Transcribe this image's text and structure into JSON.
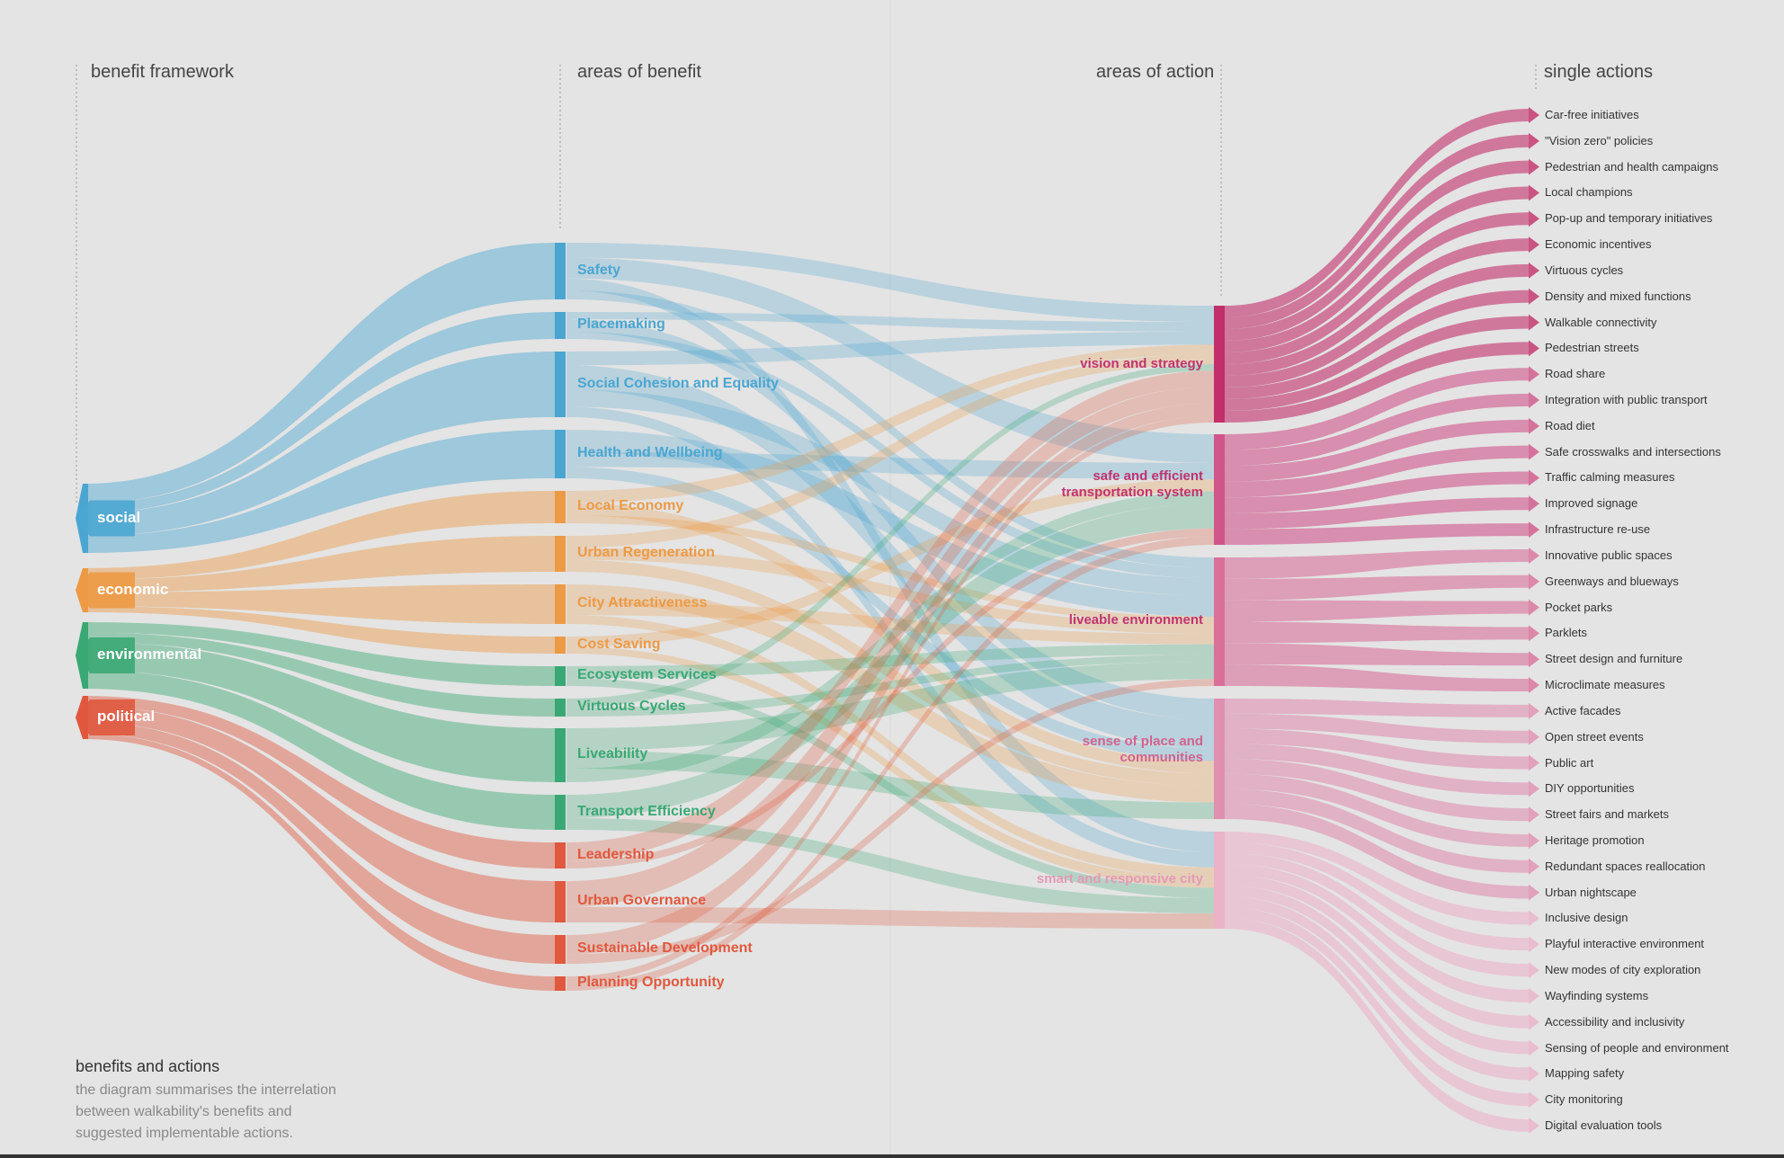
{
  "headers": {
    "framework": "benefit framework",
    "areas_benefit": "areas of benefit",
    "areas_action": "areas of action",
    "single_actions": "single actions"
  },
  "categories": [
    {
      "key": "social",
      "label": "social",
      "color": "#4aa6d1"
    },
    {
      "key": "economic",
      "label": "economic",
      "color": "#ec9a45"
    },
    {
      "key": "environmental",
      "label": "environmental",
      "color": "#3aa874"
    },
    {
      "key": "political",
      "label": "political",
      "color": "#e0583e"
    }
  ],
  "areas_of_benefit": [
    {
      "label": "Safety",
      "category": "social"
    },
    {
      "label": "Placemaking",
      "category": "social"
    },
    {
      "label": "Social Cohesion and Equality",
      "category": "social"
    },
    {
      "label": "Health and Wellbeing",
      "category": "social"
    },
    {
      "label": "Local Economy",
      "category": "economic"
    },
    {
      "label": "Urban Regeneration",
      "category": "economic"
    },
    {
      "label": "City Attractiveness",
      "category": "economic"
    },
    {
      "label": "Cost Saving",
      "category": "economic"
    },
    {
      "label": "Ecosystem Services",
      "category": "environmental"
    },
    {
      "label": "Virtuous Cycles",
      "category": "environmental"
    },
    {
      "label": "Liveability",
      "category": "environmental"
    },
    {
      "label": "Transport Efficiency",
      "category": "environmental"
    },
    {
      "label": "Leadership",
      "category": "political"
    },
    {
      "label": "Urban Governance",
      "category": "political"
    },
    {
      "label": "Sustainable Development",
      "category": "political"
    },
    {
      "label": "Planning Opportunity",
      "category": "political"
    }
  ],
  "areas_of_action": [
    {
      "label": "vision and strategy",
      "color": "#c2306b"
    },
    {
      "label": "safe and efficient transportation system",
      "color": "#d0558a"
    },
    {
      "label": "liveable environment",
      "color": "#d9709a"
    },
    {
      "label": "sense of place and communities",
      "color": "#e08fb0"
    },
    {
      "label": "smart and responsive city",
      "color": "#ebb3c8"
    }
  ],
  "single_actions": [
    "Car-free initiatives",
    "\"Vision zero\" policies",
    "Pedestrian and health campaigns",
    "Local champions",
    "Pop-up and temporary initiatives",
    "Economic incentives",
    "Virtuous cycles",
    "Density and mixed functions",
    "Walkable connectivity",
    "Pedestrian streets",
    "Road share",
    "Integration with public transport",
    "Road diet",
    "Safe crosswalks and intersections",
    "Traffic calming measures",
    "Improved signage",
    "Infrastructure re-use",
    "Innovative public spaces",
    "Greenways and blueways",
    "Pocket parks",
    "Parklets",
    "Street design and furniture",
    "Microclimate measures",
    "Active facades",
    "Open street events",
    "Public art",
    "DIY opportunities",
    "Street fairs and markets",
    "Heritage promotion",
    "Redundant spaces reallocation",
    "Urban nightscape",
    "Inclusive design",
    "Playful interactive environment",
    "New modes of city exploration",
    "Wayfinding systems",
    "Accessibility and inclusivity",
    "Sensing of people and environment",
    "Mapping safety",
    "City monitoring",
    "Digital evaluation tools"
  ],
  "caption": {
    "title": "benefits and actions",
    "lines": [
      "the diagram summarises the interrelation",
      "between walkability's benefits and",
      "suggested implementable actions."
    ]
  }
}
